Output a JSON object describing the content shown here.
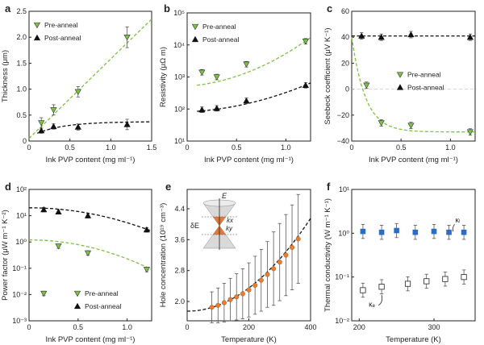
{
  "chart_data": [
    {
      "panel": "a",
      "type": "scatter",
      "xlabel": "Ink PVP content (mg ml⁻¹)",
      "ylabel": "Thickness (μm)",
      "xlim": [
        0,
        1.5
      ],
      "ylim": [
        0,
        2.5
      ],
      "xticks": [
        "0",
        "0.5",
        "1.0",
        "1.5"
      ],
      "yticks": [
        "0",
        "0.5",
        "1.0",
        "1.5",
        "2.0",
        "2.5"
      ],
      "scale": "linear",
      "legend_position": "top-left",
      "series": [
        {
          "name": "Pre-anneal",
          "marker": "triangle-down",
          "color": "#7cc242",
          "x": [
            0.15,
            0.3,
            0.6,
            1.2
          ],
          "y": [
            0.35,
            0.6,
            0.95,
            2.0
          ],
          "err": [
            0.1,
            0.1,
            0.1,
            0.2
          ]
        },
        {
          "name": "Post-anneal",
          "marker": "triangle-up",
          "color": "#111111",
          "x": [
            0.15,
            0.3,
            0.6,
            1.2
          ],
          "y": [
            0.2,
            0.28,
            0.27,
            0.32
          ],
          "err": [
            0.05,
            0.05,
            0.06,
            0.1
          ]
        }
      ],
      "fits": [
        {
          "color": "#7cc242",
          "form": "linear",
          "x": [
            0.0,
            1.5
          ],
          "y": [
            0.05,
            2.35
          ]
        },
        {
          "color": "#111111",
          "form": "saturating",
          "x": [
            0.1,
            1.5
          ],
          "y": [
            0.15,
            0.37
          ]
        }
      ]
    },
    {
      "panel": "b",
      "type": "scatter",
      "xlabel": "Ink PVP content (mg ml⁻¹)",
      "ylabel": "Resistivity (μΩ m)",
      "xlim": [
        0,
        1.25
      ],
      "ylim": [
        10,
        100000
      ],
      "xticks": [
        "0",
        "0.5",
        "1.0"
      ],
      "yticks": [
        "10¹",
        "10²",
        "10³",
        "10⁴",
        "10⁵"
      ],
      "scale": "log-y",
      "legend_position": "top-left",
      "series": [
        {
          "name": "Pre-anneal",
          "marker": "triangle-down",
          "color": "#7cc242",
          "x": [
            0.15,
            0.3,
            0.6,
            1.2
          ],
          "y": [
            1400,
            1000,
            2500,
            13000
          ]
        },
        {
          "name": "Post-anneal",
          "marker": "triangle-up",
          "color": "#111111",
          "x": [
            0.15,
            0.3,
            0.6,
            1.2
          ],
          "y": [
            95,
            105,
            180,
            550
          ]
        }
      ],
      "fits": [
        {
          "color": "#7cc242",
          "form": "exponential",
          "x": [
            0.1,
            1.25
          ],
          "y": [
            550,
            17000
          ]
        },
        {
          "color": "#111111",
          "form": "exponential",
          "x": [
            0.1,
            1.25
          ],
          "y": [
            85,
            650
          ]
        }
      ]
    },
    {
      "panel": "c",
      "type": "scatter",
      "xlabel": "Ink PVP content (mg ml⁻¹)",
      "ylabel": "Seebeck coefficient (μV K⁻¹)",
      "xlim": [
        0,
        1.25
      ],
      "ylim": [
        -40,
        60
      ],
      "xticks": [
        "0",
        "0.5",
        "1.0"
      ],
      "yticks": [
        "−40",
        "−20",
        "0",
        "20",
        "40",
        "60"
      ],
      "scale": "linear",
      "legend_position": "middle-right",
      "series": [
        {
          "name": "Pre-anneal",
          "marker": "triangle-down",
          "color": "#7cc242",
          "x": [
            0.15,
            0.3,
            0.6,
            1.2
          ],
          "y": [
            3,
            -26,
            -28,
            -33
          ]
        },
        {
          "name": "Post-anneal",
          "marker": "triangle-up",
          "color": "#111111",
          "x": [
            0.1,
            0.3,
            0.6,
            1.2
          ],
          "y": [
            41,
            40,
            42,
            40
          ]
        }
      ],
      "fits": [
        {
          "color": "#7cc242",
          "form": "exponential-decay",
          "x": [
            0.0,
            1.25
          ],
          "y": [
            40,
            -33
          ]
        },
        {
          "color": "#111111",
          "form": "constant",
          "x": [
            0.0,
            1.25
          ],
          "y": [
            41,
            41
          ]
        }
      ]
    },
    {
      "panel": "d",
      "type": "scatter",
      "xlabel": "Ink PVP content (mg ml⁻¹)",
      "ylabel": "Power factor (μW m⁻¹ K⁻²)",
      "xlim": [
        0,
        1.25
      ],
      "ylim": [
        0.001,
        100
      ],
      "xticks": [
        "0",
        "0.5",
        "1.0"
      ],
      "yticks": [
        "10⁻³",
        "10⁻²",
        "10⁻¹",
        "10⁰",
        "10¹",
        "10²"
      ],
      "scale": "log-y",
      "legend_position": "bottom-right",
      "series": [
        {
          "name": "Pre-anneal",
          "marker": "triangle-down",
          "color": "#7cc242",
          "x": [
            0.15,
            0.3,
            0.6,
            1.2
          ],
          "y": [
            0.011,
            0.7,
            0.38,
            0.09
          ]
        },
        {
          "name": "Post-anneal",
          "marker": "triangle-up",
          "color": "#111111",
          "x": [
            0.15,
            0.3,
            0.6,
            1.2
          ],
          "y": [
            17,
            14,
            10,
            2.9
          ]
        }
      ],
      "fits": [
        {
          "color": "#7cc242",
          "form": "decay",
          "x": [
            0.0,
            1.25
          ],
          "y": [
            1.2,
            0.09
          ]
        },
        {
          "color": "#111111",
          "form": "decay",
          "x": [
            0.0,
            1.25
          ],
          "y": [
            20,
            2.6
          ]
        }
      ]
    },
    {
      "panel": "e",
      "type": "scatter",
      "xlabel": "Temperature (K)",
      "ylabel": "Hole concentration (10¹⁹ cm⁻³)",
      "xlim": [
        0,
        400
      ],
      "ylim": [
        1.5,
        4.9
      ],
      "xticks": [
        "0",
        "200",
        "400"
      ],
      "yticks": [
        "2.0",
        "2.8",
        "3.6",
        "4.4"
      ],
      "scale": "linear",
      "marker_color": "#e87d2f",
      "x": [
        80,
        100,
        120,
        140,
        160,
        180,
        200,
        220,
        240,
        260,
        280,
        300,
        320,
        340,
        360
      ],
      "y": [
        1.85,
        1.9,
        1.97,
        2.05,
        2.12,
        2.2,
        2.3,
        2.42,
        2.55,
        2.7,
        2.85,
        3.02,
        3.2,
        3.4,
        3.62
      ],
      "err": [
        0.4,
        0.45,
        0.5,
        0.55,
        0.6,
        0.65,
        0.7,
        0.75,
        0.8,
        0.85,
        0.95,
        1.0,
        1.05,
        1.1,
        1.15
      ],
      "fit": {
        "color": "#111111",
        "form": "quadratic",
        "x": [
          0,
          400
        ],
        "y": [
          1.75,
          4.15
        ]
      },
      "inset_labels": [
        "E",
        "δE",
        "kₓ",
        "kᵧ"
      ],
      "inset_label_e": "E",
      "inset_label_de": "δE",
      "inset_label_kx": "kx",
      "inset_label_ky": "ky"
    },
    {
      "panel": "f",
      "type": "scatter",
      "xlabel": "Temperature (K)",
      "ylabel": "Thermal conductivity (W m⁻¹ K⁻¹)",
      "xlim": [
        190,
        355
      ],
      "ylim": [
        0.01,
        10
      ],
      "xticks": [
        "200",
        "300"
      ],
      "yticks": [
        "10⁻²",
        "10⁻¹",
        "10⁰",
        "10¹"
      ],
      "scale": "log-y",
      "series": [
        {
          "name": "κl",
          "label": "κₗ",
          "marker": "square-filled",
          "color": "#2b6cc4",
          "x": [
            205,
            230,
            250,
            275,
            300,
            320,
            340
          ],
          "y": [
            1.1,
            1.05,
            1.15,
            1.05,
            1.1,
            1.05,
            1.05
          ]
        },
        {
          "name": "κe",
          "label": "κₑ",
          "marker": "square-open",
          "color": "#222222",
          "x": [
            205,
            230,
            265,
            290,
            315,
            340
          ],
          "y": [
            0.05,
            0.06,
            0.07,
            0.08,
            0.09,
            0.1
          ]
        }
      ]
    }
  ]
}
